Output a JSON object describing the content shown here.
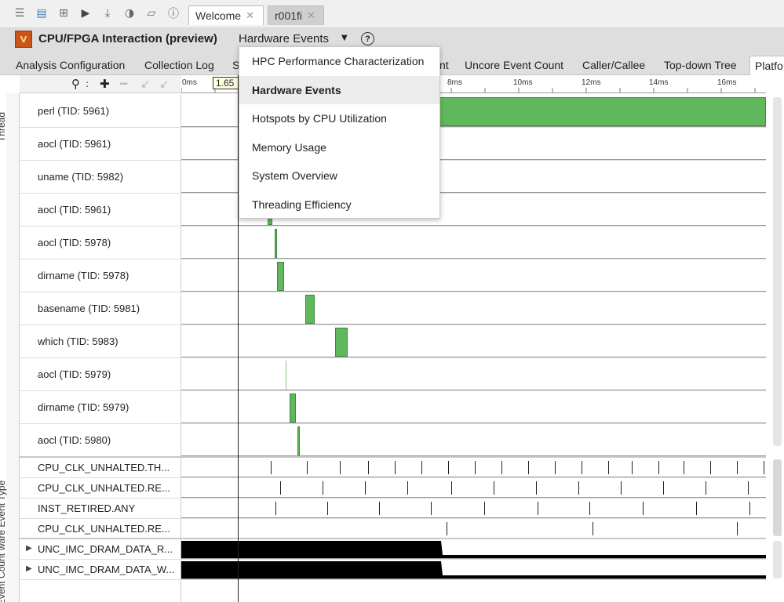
{
  "toolbar": {
    "icons": [
      "menu-icon",
      "new-project-icon",
      "new-analysis-icon",
      "run-icon",
      "import-icon",
      "compare-icon",
      "open-icon",
      "help-icon"
    ],
    "tabs": [
      {
        "label": "Welcome",
        "close": "✕"
      },
      {
        "label": "r001fi",
        "close": "✕"
      }
    ]
  },
  "header": {
    "title": "CPU/FPGA Interaction (preview)",
    "view_label": "Hardware Events",
    "caret": "▼",
    "help": "?"
  },
  "view_tabs": [
    "Analysis Configuration",
    "Collection Log",
    "S",
    "nt",
    "Uncore Event Count",
    "Caller/Callee",
    "Top-down Tree",
    "Platfo"
  ],
  "timeline": {
    "ruler_box": "1.65",
    "ruler_ticks": [
      "0ms",
      "8ms",
      "10ms",
      "12ms",
      "14ms",
      "16ms"
    ],
    "groups": [
      "Thread",
      "ware Event Type",
      "e Event Count"
    ],
    "threads": [
      {
        "name": "perl (TID: 5961)"
      },
      {
        "name": "aocl (TID: 5961)"
      },
      {
        "name": "uname (TID: 5982)"
      },
      {
        "name": "aocl (TID: 5961)"
      },
      {
        "name": "aocl (TID: 5978)"
      },
      {
        "name": "dirname (TID: 5978)"
      },
      {
        "name": "basename (TID: 5981)"
      },
      {
        "name": "which (TID: 5983)"
      },
      {
        "name": "aocl (TID: 5979)"
      },
      {
        "name": "dirname (TID: 5979)"
      },
      {
        "name": "aocl (TID: 5980)"
      }
    ],
    "event_types": [
      {
        "name": "CPU_CLK_UNHALTED.TH..."
      },
      {
        "name": "CPU_CLK_UNHALTED.RE..."
      },
      {
        "name": "INST_RETIRED.ANY"
      },
      {
        "name": "CPU_CLK_UNHALTED.RE..."
      }
    ],
    "event_counts": [
      {
        "name": "UNC_IMC_DRAM_DATA_R...",
        "expander": "▶"
      },
      {
        "name": "UNC_IMC_DRAM_DATA_W...",
        "expander": "▶"
      }
    ]
  },
  "menu": {
    "items": [
      {
        "label": "HPC Performance Characterization",
        "selected": false
      },
      {
        "label": "Hardware Events",
        "selected": true
      },
      {
        "label": "Hotspots by CPU Utilization",
        "selected": false
      },
      {
        "label": "Memory Usage",
        "selected": false
      },
      {
        "label": "System Overview",
        "selected": false
      },
      {
        "label": "Threading Efficiency",
        "selected": false
      }
    ]
  },
  "colors": {
    "thread_bar": "#5fb85b",
    "header_bg": "#dedede",
    "menu_selected": "#ececec"
  }
}
